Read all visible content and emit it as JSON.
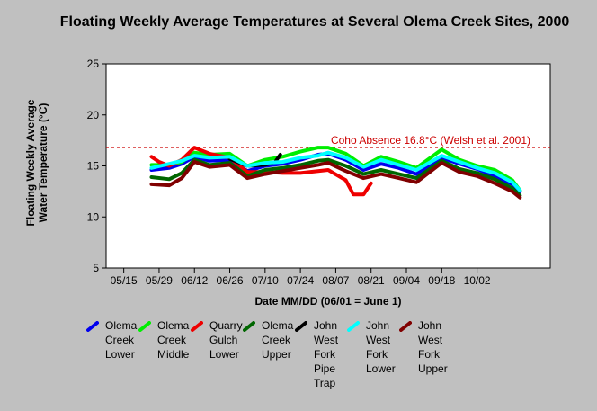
{
  "chart_data": {
    "type": "line",
    "title": "Floating Weekly Average Temperatures at Several Olema Creek Sites, 2000",
    "xlabel": "Date MM/DD (06/01 = June 1)",
    "ylabel": "Floating Weekly Average Water Temperature (°C)",
    "ylim": [
      5,
      25
    ],
    "yticks": [
      5,
      10,
      15,
      20,
      25
    ],
    "xticks": [
      "05/15",
      "05/29",
      "06/12",
      "06/26",
      "07/10",
      "07/24",
      "08/07",
      "08/21",
      "09/04",
      "09/18",
      "10/02"
    ],
    "grid": false,
    "legend_position": "bottom",
    "reference_line": {
      "value": 16.8,
      "label": "Coho Absence 16.8°C (Welsh et al. 2001)",
      "color": "#cc0000"
    },
    "series": [
      {
        "name": "Olema Creek Lower",
        "color": "#0000ee",
        "points": [
          [
            "05/26",
            14.6
          ],
          [
            "06/02",
            14.8
          ],
          [
            "06/07",
            15.2
          ],
          [
            "06/12",
            15.9
          ],
          [
            "06/18",
            15.5
          ],
          [
            "06/26",
            15.6
          ],
          [
            "07/03",
            14.5
          ],
          [
            "07/10",
            15.0
          ],
          [
            "07/17",
            15.2
          ],
          [
            "07/24",
            15.6
          ],
          [
            "07/31",
            16.1
          ],
          [
            "08/04",
            16.2
          ],
          [
            "08/11",
            15.6
          ],
          [
            "08/18",
            14.6
          ],
          [
            "08/25",
            15.2
          ],
          [
            "09/01",
            14.8
          ],
          [
            "09/08",
            14.2
          ],
          [
            "09/18",
            15.8
          ],
          [
            "09/25",
            15.2
          ],
          [
            "10/02",
            14.7
          ],
          [
            "10/09",
            14.0
          ],
          [
            "10/16",
            13.2
          ],
          [
            "10/19",
            12.5
          ]
        ]
      },
      {
        "name": "Olema Creek Middle",
        "color": "#00ee00",
        "points": [
          [
            "05/26",
            15.1
          ],
          [
            "06/02",
            15.1
          ],
          [
            "06/07",
            15.4
          ],
          [
            "06/12",
            16.3
          ],
          [
            "06/18",
            16.1
          ],
          [
            "06/26",
            16.2
          ],
          [
            "07/03",
            15.0
          ],
          [
            "07/10",
            15.6
          ],
          [
            "07/17",
            15.9
          ],
          [
            "07/24",
            16.4
          ],
          [
            "07/31",
            16.8
          ],
          [
            "08/04",
            16.8
          ],
          [
            "08/11",
            16.2
          ],
          [
            "08/18",
            15.0
          ],
          [
            "08/25",
            15.9
          ],
          [
            "09/01",
            15.4
          ],
          [
            "09/08",
            14.8
          ],
          [
            "09/18",
            16.6
          ],
          [
            "09/25",
            15.6
          ],
          [
            "10/02",
            15.0
          ],
          [
            "10/09",
            14.6
          ],
          [
            "10/16",
            13.6
          ],
          [
            "10/19",
            12.6
          ]
        ]
      },
      {
        "name": "Quarry Gulch Lower",
        "color": "#ee0000",
        "points": [
          [
            "05/26",
            15.9
          ],
          [
            "05/29",
            15.4
          ],
          [
            "06/02",
            15.0
          ],
          [
            "06/07",
            15.6
          ],
          [
            "06/12",
            16.8
          ],
          [
            "06/18",
            16.2
          ],
          [
            "06/26",
            15.8
          ],
          [
            "07/03",
            14.4
          ],
          [
            "07/10",
            14.4
          ],
          [
            "07/17",
            14.3
          ],
          [
            "07/24",
            14.3
          ],
          [
            "07/31",
            14.5
          ],
          [
            "08/04",
            14.6
          ],
          [
            "08/11",
            13.6
          ],
          [
            "08/14",
            12.2
          ],
          [
            "08/18",
            12.2
          ],
          [
            "08/21",
            13.3
          ]
        ]
      },
      {
        "name": "Olema Creek Upper",
        "color": "#006600",
        "points": [
          [
            "05/26",
            13.9
          ],
          [
            "06/02",
            13.7
          ],
          [
            "06/07",
            14.3
          ],
          [
            "06/12",
            15.6
          ],
          [
            "06/18",
            15.1
          ],
          [
            "06/26",
            15.3
          ],
          [
            "07/03",
            14.0
          ],
          [
            "07/10",
            14.6
          ],
          [
            "07/17",
            14.8
          ],
          [
            "07/24",
            15.1
          ],
          [
            "07/31",
            15.5
          ],
          [
            "08/04",
            15.6
          ],
          [
            "08/11",
            15.0
          ],
          [
            "08/18",
            14.2
          ],
          [
            "08/25",
            14.6
          ],
          [
            "09/01",
            14.2
          ],
          [
            "09/08",
            13.8
          ],
          [
            "09/18",
            15.5
          ],
          [
            "09/25",
            14.7
          ],
          [
            "10/02",
            14.3
          ],
          [
            "10/09",
            13.7
          ],
          [
            "10/16",
            12.8
          ],
          [
            "10/19",
            12.1
          ]
        ]
      },
      {
        "name": "John West Fork Pipe Trap",
        "color": "#000000",
        "points": [
          [
            "06/26",
            15.7
          ],
          [
            "07/03",
            15.0
          ],
          [
            "07/10",
            15.1
          ],
          [
            "07/14",
            15.4
          ],
          [
            "07/16",
            16.1
          ]
        ]
      },
      {
        "name": "John West Fork Lower",
        "color": "#00ffff",
        "points": [
          [
            "05/26",
            14.8
          ],
          [
            "06/02",
            15.2
          ],
          [
            "06/07",
            15.5
          ],
          [
            "06/12",
            16.0
          ],
          [
            "06/18",
            15.8
          ],
          [
            "06/26",
            15.9
          ],
          [
            "07/03",
            15.0
          ],
          [
            "07/10",
            15.3
          ],
          [
            "07/17",
            15.4
          ],
          [
            "07/24",
            15.8
          ],
          [
            "07/31",
            16.0
          ],
          [
            "08/04",
            16.3
          ],
          [
            "08/11",
            15.8
          ],
          [
            "08/18",
            14.9
          ],
          [
            "08/25",
            15.6
          ],
          [
            "09/01",
            15.1
          ],
          [
            "09/08",
            14.6
          ],
          [
            "09/18",
            16.0
          ],
          [
            "09/25",
            15.4
          ],
          [
            "10/02",
            14.8
          ],
          [
            "10/09",
            14.3
          ],
          [
            "10/16",
            13.4
          ],
          [
            "10/19",
            12.6
          ]
        ]
      },
      {
        "name": "John West Fork Upper",
        "color": "#800000",
        "points": [
          [
            "05/26",
            13.2
          ],
          [
            "06/02",
            13.1
          ],
          [
            "06/07",
            13.8
          ],
          [
            "06/12",
            15.4
          ],
          [
            "06/18",
            14.9
          ],
          [
            "06/26",
            15.1
          ],
          [
            "07/03",
            13.8
          ],
          [
            "07/10",
            14.2
          ],
          [
            "07/17",
            14.5
          ],
          [
            "07/24",
            14.8
          ],
          [
            "07/31",
            15.1
          ],
          [
            "08/04",
            15.3
          ],
          [
            "08/11",
            14.5
          ],
          [
            "08/18",
            13.8
          ],
          [
            "08/25",
            14.2
          ],
          [
            "09/01",
            13.8
          ],
          [
            "09/08",
            13.4
          ],
          [
            "09/18",
            15.3
          ],
          [
            "09/25",
            14.4
          ],
          [
            "10/02",
            14.0
          ],
          [
            "10/09",
            13.3
          ],
          [
            "10/16",
            12.5
          ],
          [
            "10/19",
            11.9
          ]
        ]
      }
    ]
  },
  "legend": [
    {
      "label": "Olema\nCreek\nLower",
      "color": "#0000ee"
    },
    {
      "label": "Olema\nCreek\nMiddle",
      "color": "#00ee00"
    },
    {
      "label": "Quarry\nGulch\nLower",
      "color": "#ee0000"
    },
    {
      "label": "Olema\nCreek\nUpper",
      "color": "#006600"
    },
    {
      "label": "John\nWest\nFork\nPipe\nTrap",
      "color": "#000000"
    },
    {
      "label": "John\nWest\nFork\nLower",
      "color": "#00ffff"
    },
    {
      "label": "John\nWest\nFork\nUpper",
      "color": "#800000"
    }
  ]
}
